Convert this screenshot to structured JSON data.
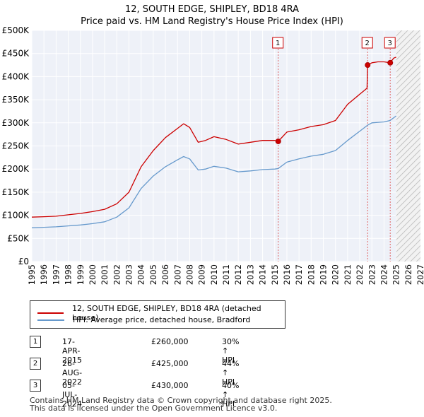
{
  "header": {
    "title": "12, SOUTH EDGE, SHIPLEY, BD18 4RA",
    "subtitle": "Price paid vs. HM Land Registry's House Price Index (HPI)"
  },
  "chart_data": {
    "type": "line",
    "title": "12, SOUTH EDGE, SHIPLEY, BD18 4RA",
    "subtitle": "Price paid vs. HM Land Registry's House Price Index (HPI)",
    "xlim": [
      1995,
      2027
    ],
    "ylim": [
      0,
      500000
    ],
    "x_ticks": [
      1995,
      1996,
      1997,
      1998,
      1999,
      2000,
      2001,
      2002,
      2003,
      2004,
      2005,
      2006,
      2007,
      2008,
      2009,
      2010,
      2011,
      2012,
      2013,
      2014,
      2015,
      2016,
      2017,
      2018,
      2019,
      2020,
      2021,
      2022,
      2023,
      2024,
      2025,
      2026,
      2027
    ],
    "y_ticks": [
      0,
      50000,
      100000,
      150000,
      200000,
      250000,
      300000,
      350000,
      400000,
      450000,
      500000
    ],
    "y_tick_labels": [
      "£0",
      "£50K",
      "£100K",
      "£150K",
      "£200K",
      "£250K",
      "£300K",
      "£350K",
      "£400K",
      "£450K",
      "£500K"
    ],
    "grid": true,
    "future_hatch_from": 2025.0,
    "series": [
      {
        "name": "12, SOUTH EDGE, SHIPLEY, BD18 4RA (detached house)",
        "color": "#cc0000",
        "points": [
          [
            1995.0,
            96000
          ],
          [
            1996.0,
            97000
          ],
          [
            1997.0,
            98000
          ],
          [
            1998.0,
            101000
          ],
          [
            1999.0,
            104000
          ],
          [
            2000.0,
            108000
          ],
          [
            2001.0,
            113000
          ],
          [
            2002.0,
            125000
          ],
          [
            2003.0,
            150000
          ],
          [
            2004.0,
            205000
          ],
          [
            2005.0,
            240000
          ],
          [
            2006.0,
            268000
          ],
          [
            2007.0,
            288000
          ],
          [
            2007.5,
            298000
          ],
          [
            2008.0,
            290000
          ],
          [
            2008.7,
            258000
          ],
          [
            2009.3,
            262000
          ],
          [
            2010.0,
            270000
          ],
          [
            2011.0,
            264000
          ],
          [
            2012.0,
            254000
          ],
          [
            2013.0,
            258000
          ],
          [
            2014.0,
            262000
          ],
          [
            2015.0,
            262000
          ],
          [
            2015.29,
            260000
          ],
          [
            2016.0,
            280000
          ],
          [
            2017.0,
            285000
          ],
          [
            2018.0,
            292000
          ],
          [
            2019.0,
            296000
          ],
          [
            2020.0,
            305000
          ],
          [
            2021.0,
            340000
          ],
          [
            2022.0,
            362000
          ],
          [
            2022.6,
            375000
          ],
          [
            2022.65,
            425000
          ],
          [
            2023.0,
            430000
          ],
          [
            2023.5,
            432000
          ],
          [
            2024.0,
            432000
          ],
          [
            2024.5,
            430000
          ],
          [
            2024.8,
            440000
          ],
          [
            2025.0,
            442000
          ]
        ]
      },
      {
        "name": "HPI: Average price, detached house, Bradford",
        "color": "#6699cc",
        "points": [
          [
            1995.0,
            73000
          ],
          [
            1996.0,
            74000
          ],
          [
            1997.0,
            75000
          ],
          [
            1998.0,
            77000
          ],
          [
            1999.0,
            79000
          ],
          [
            2000.0,
            82000
          ],
          [
            2001.0,
            86000
          ],
          [
            2002.0,
            96000
          ],
          [
            2003.0,
            116000
          ],
          [
            2004.0,
            158000
          ],
          [
            2005.0,
            185000
          ],
          [
            2006.0,
            205000
          ],
          [
            2007.0,
            220000
          ],
          [
            2007.5,
            227000
          ],
          [
            2008.0,
            222000
          ],
          [
            2008.7,
            198000
          ],
          [
            2009.3,
            200000
          ],
          [
            2010.0,
            206000
          ],
          [
            2011.0,
            202000
          ],
          [
            2012.0,
            194000
          ],
          [
            2013.0,
            196000
          ],
          [
            2014.0,
            199000
          ],
          [
            2015.0,
            200000
          ],
          [
            2015.29,
            201000
          ],
          [
            2016.0,
            215000
          ],
          [
            2017.0,
            222000
          ],
          [
            2018.0,
            228000
          ],
          [
            2019.0,
            232000
          ],
          [
            2020.0,
            240000
          ],
          [
            2021.0,
            262000
          ],
          [
            2022.0,
            282000
          ],
          [
            2022.65,
            295000
          ],
          [
            2023.0,
            300000
          ],
          [
            2024.0,
            302000
          ],
          [
            2024.5,
            305000
          ],
          [
            2025.0,
            315000
          ]
        ]
      }
    ],
    "sales": [
      {
        "label": "1",
        "x": 2015.29,
        "price": 260000
      },
      {
        "label": "2",
        "x": 2022.65,
        "price": 425000
      },
      {
        "label": "3",
        "x": 2024.51,
        "price": 430000
      }
    ]
  },
  "legend": {
    "items": [
      {
        "label": "12, SOUTH EDGE, SHIPLEY, BD18 4RA (detached house)",
        "color": "#cc0000"
      },
      {
        "label": "HPI: Average price, detached house, Bradford",
        "color": "#6699cc"
      }
    ]
  },
  "sales_table": [
    {
      "num": "1",
      "date": "17-APR-2015",
      "price": "£260,000",
      "hpi": "30% ↑ HPI"
    },
    {
      "num": "2",
      "date": "26-AUG-2022",
      "price": "£425,000",
      "hpi": "44% ↑ HPI"
    },
    {
      "num": "3",
      "date": "05-JUL-2024",
      "price": "£430,000",
      "hpi": "40% ↑ HPI"
    }
  ],
  "footer": {
    "line1": "Contains HM Land Registry data © Crown copyright and database right 2025.",
    "line2": "This data is licensed under the Open Government Licence v3.0."
  }
}
